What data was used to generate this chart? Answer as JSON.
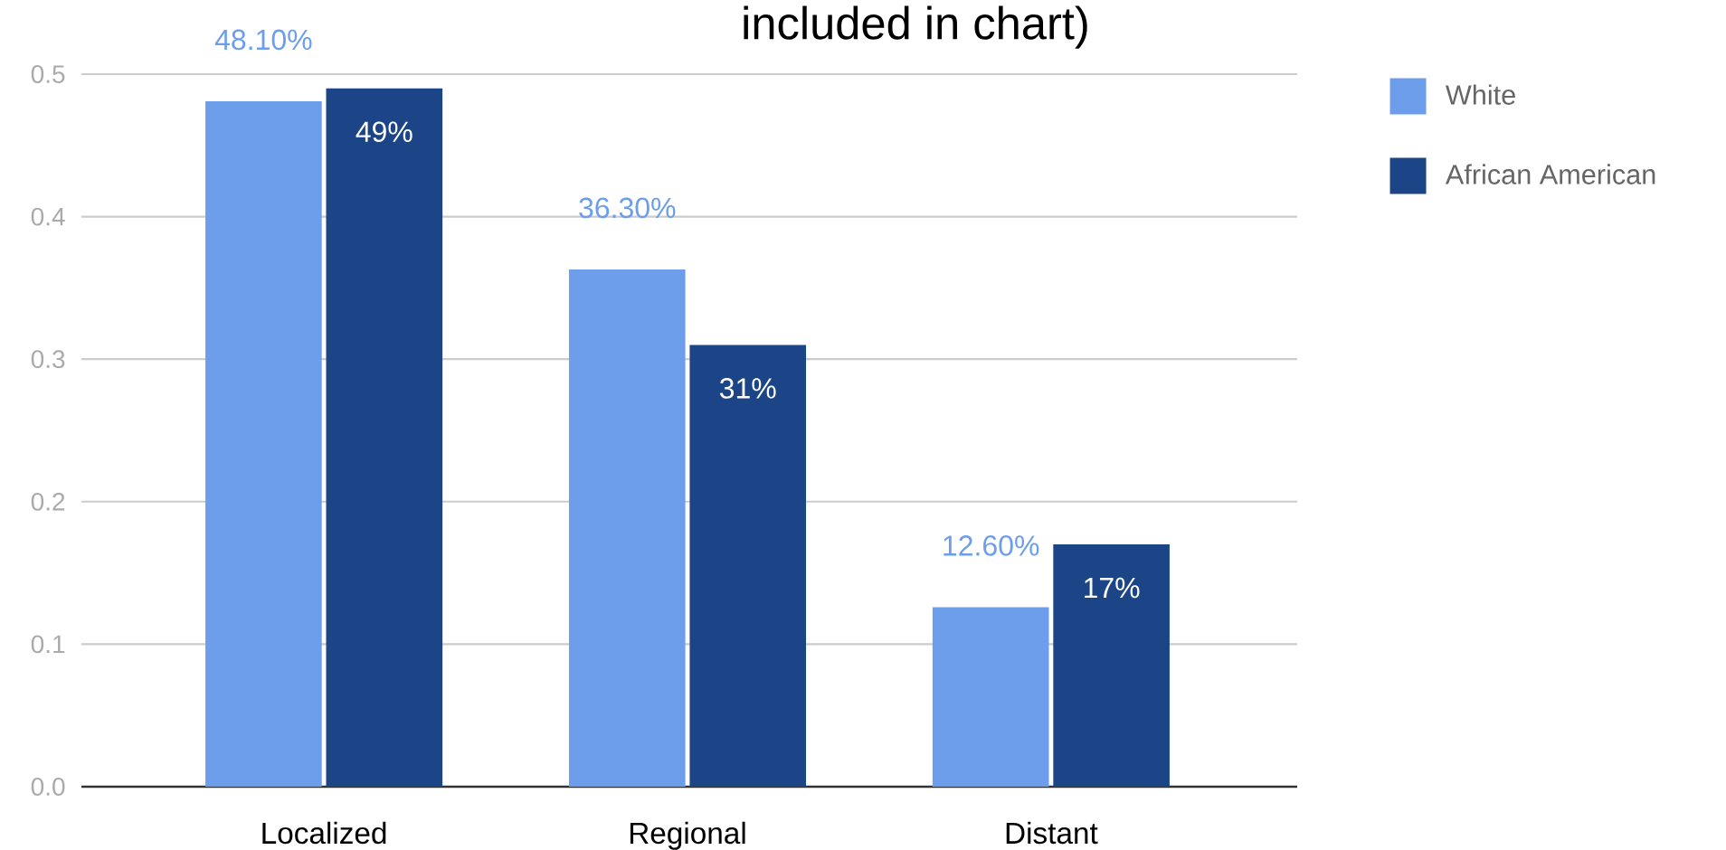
{
  "chart_data": {
    "type": "bar",
    "title": "included in chart)",
    "categories": [
      "Localized",
      "Regional",
      "Distant"
    ],
    "series": [
      {
        "name": "White",
        "color": "#6d9eeb",
        "values": [
          0.481,
          0.363,
          0.126
        ],
        "value_labels": [
          "48.10%",
          "36.30%",
          "12.60%"
        ]
      },
      {
        "name": "African American",
        "color": "#1c4587",
        "values": [
          0.49,
          0.31,
          0.17
        ],
        "value_labels": [
          "49%",
          "31%",
          "17%"
        ]
      }
    ],
    "ylim": [
      0,
      0.5
    ],
    "yticks": [
      {
        "value": 0,
        "label": "0.0"
      },
      0.1,
      0.2,
      0.3,
      0.4,
      0.5
    ],
    "grid": "y",
    "legend": "right"
  }
}
